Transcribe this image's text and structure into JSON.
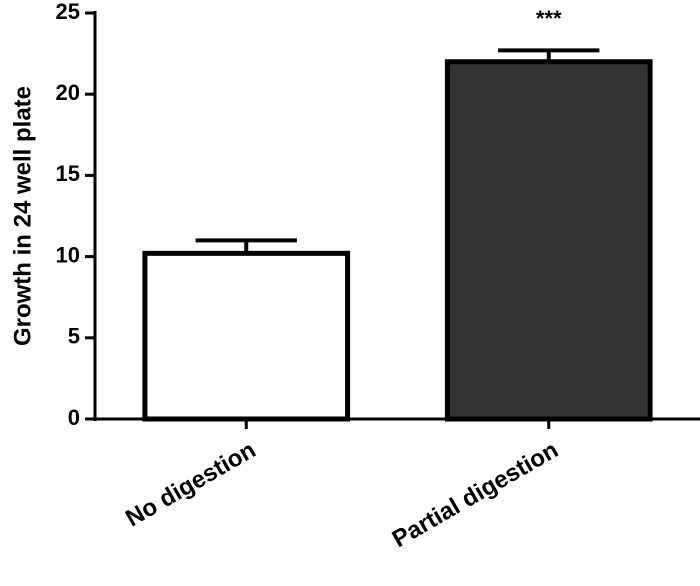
{
  "chart_data": {
    "type": "bar",
    "y_label": "Growth in 24 well plate",
    "categories": [
      "No digestion",
      "Partial digestion"
    ],
    "values": [
      10.2,
      22.0
    ],
    "errors": [
      0.8,
      0.7
    ],
    "colors": [
      "#ffffff",
      "#333333"
    ],
    "annotation": "***",
    "ylim": [
      0,
      25
    ],
    "yticks": [
      0,
      5,
      10,
      15,
      20,
      25
    ],
    "grid": false
  }
}
